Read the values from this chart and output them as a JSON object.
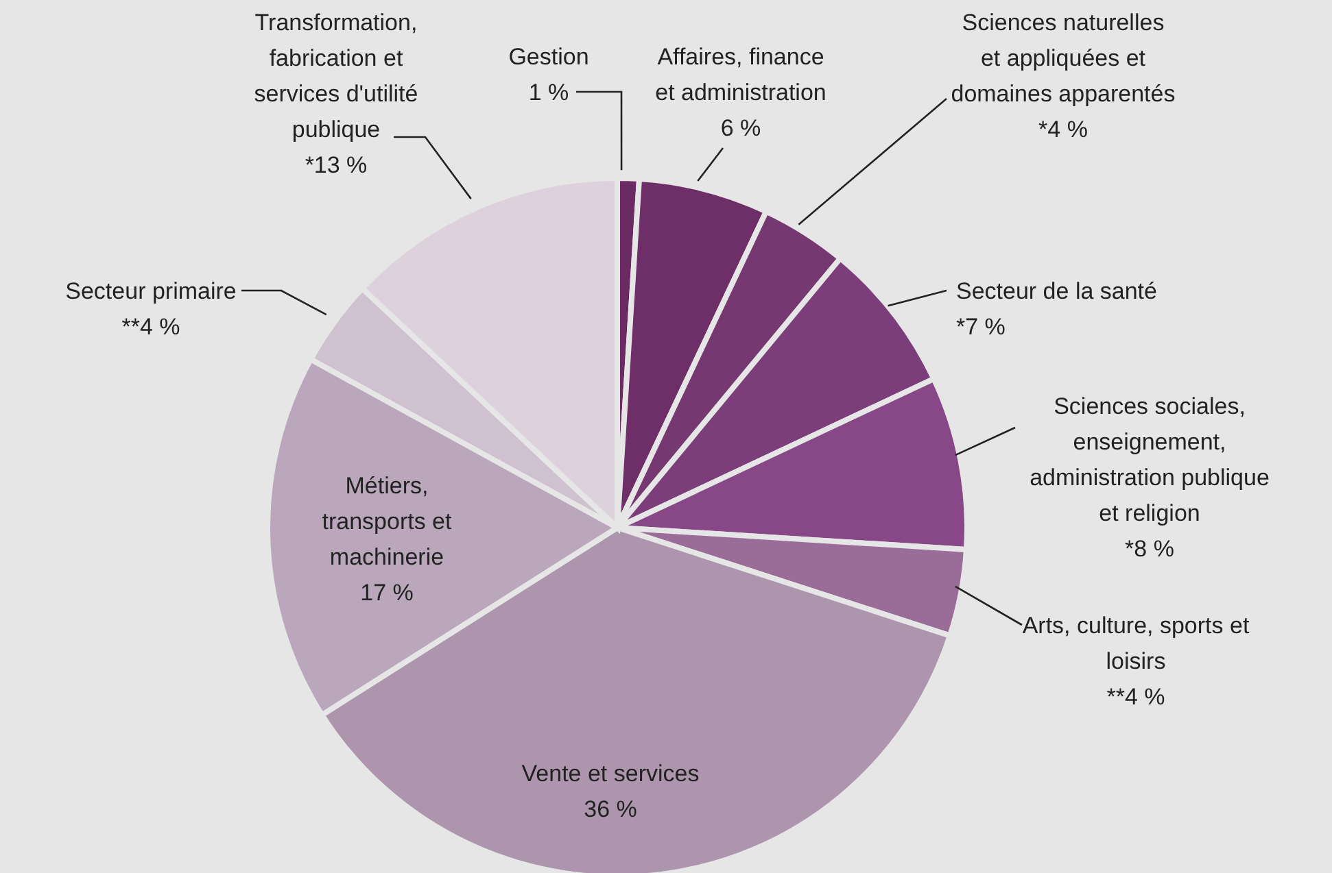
{
  "chart_data": {
    "type": "pie",
    "categories": [
      "Gestion",
      "Affaires, finance et administration",
      "Sciences naturelles et appliquées et domaines apparentés",
      "Secteur de la santé",
      "Sciences sociales, enseignement, administration publique et religion",
      "Arts, culture, sports et loisirs",
      "Vente et services",
      "Métiers, transports et machinerie",
      "Secteur primaire",
      "Transformation, fabrication et services d'utilité publique"
    ],
    "values": [
      1,
      6,
      4,
      7,
      8,
      4,
      36,
      17,
      4,
      13
    ],
    "value_labels": [
      "1 %",
      "6 %",
      "*4 %",
      "*7 %",
      "*8 %",
      "**4 %",
      "36 %",
      "17 %",
      "**4 %",
      "*13 %"
    ],
    "colors": [
      "#6a2a62",
      "#6e2f68",
      "#763870",
      "#7c3e7a",
      "#884887",
      "#9a6c98",
      "#ad95ae",
      "#bba7bc",
      "#cfc1cf",
      "#ddd2dc"
    ]
  }
}
